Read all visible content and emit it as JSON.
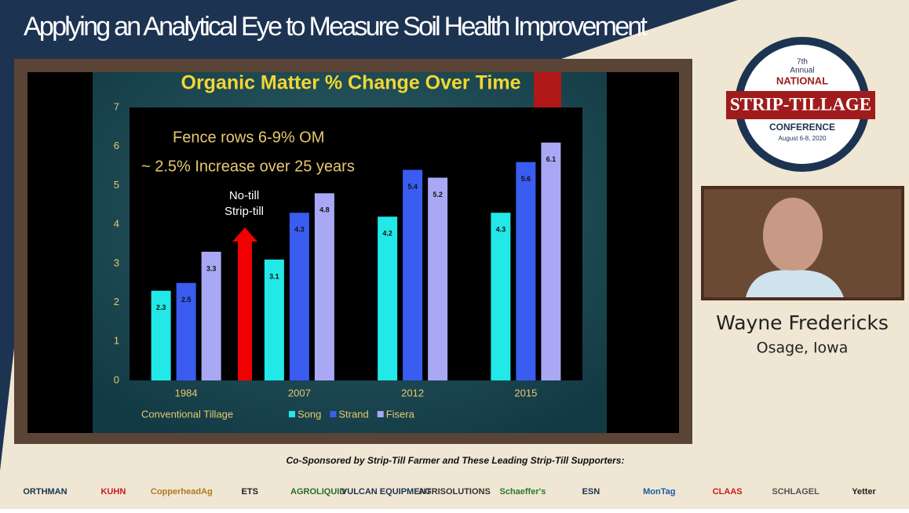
{
  "header": {
    "title": "Applying an Analytical Eye to Measure Soil Health Improvement"
  },
  "badge": {
    "edition": "7th",
    "annual": "Annual",
    "national": "NATIONAL",
    "name": "STRIP-TILLAGE",
    "conference": "CONFERENCE",
    "dates": "August 6-8, 2020"
  },
  "speaker": {
    "name": "Wayne Fredericks",
    "location": "Osage, Iowa"
  },
  "sponsors": {
    "caption": "Co-Sponsored by Strip-Till Farmer and These Leading Strip-Till Supporters:",
    "logos": [
      "ORTHMAN",
      "KUHN",
      "CopperheadAg",
      "ETS",
      "AGROLIQUID",
      "VULCAN EQUIPMENT",
      "AGRISOLUTIONS",
      "Schaeffer's",
      "ESN",
      "MonTag",
      "CLAAS",
      "SCHLAGEL",
      "Yetter"
    ]
  },
  "chart_data": {
    "type": "bar",
    "title": "Organic Matter % Change Over Time",
    "categories": [
      "1984",
      "2007",
      "2012",
      "2015"
    ],
    "series": [
      {
        "name": "Song",
        "color": "#22e8e8",
        "values": [
          2.3,
          3.1,
          4.2,
          4.3
        ]
      },
      {
        "name": "Strand",
        "color": "#3a5cf0",
        "values": [
          2.5,
          4.3,
          5.4,
          5.6
        ]
      },
      {
        "name": "Fisera",
        "color": "#a8a8f5",
        "values": [
          3.3,
          4.8,
          5.2,
          6.1
        ]
      }
    ],
    "ylim": [
      0,
      7
    ],
    "yticks": [
      0,
      1,
      2,
      3,
      4,
      5,
      6,
      7
    ],
    "annotations": [
      "Fence rows 6-9% OM",
      "~ 2.5% Increase over 25 years",
      "No-till",
      "Strip-till",
      "Conventional Tillage"
    ]
  }
}
